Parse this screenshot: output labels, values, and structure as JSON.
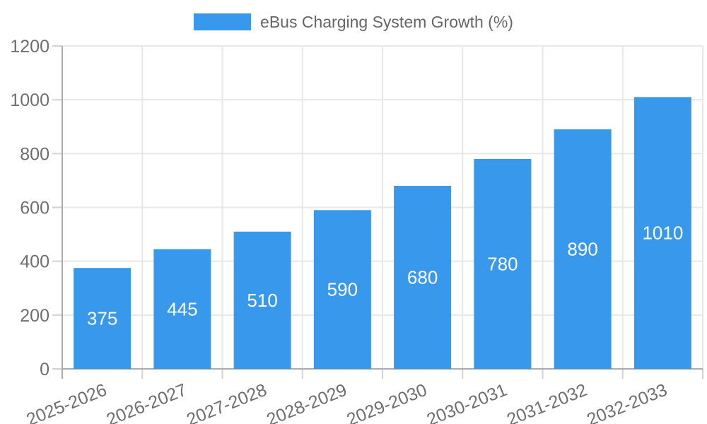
{
  "chart_data": {
    "type": "bar",
    "title": "eBus Charging System Growth (%)",
    "legend": {
      "entries": [
        "eBus Charging System Growth (%)"
      ],
      "position": "top-center"
    },
    "categories": [
      "2025-2026",
      "2026-2027",
      "2027-2028",
      "2028-2029",
      "2029-2030",
      "2030-2031",
      "2031-2032",
      "2032-2033"
    ],
    "values": [
      375,
      445,
      510,
      590,
      680,
      780,
      890,
      1010
    ],
    "value_labels_shown": true,
    "xlabel": "",
    "ylabel": "",
    "ylim": [
      0,
      1200
    ],
    "yticks": [
      0,
      200,
      400,
      600,
      800,
      1000,
      1200
    ],
    "grid": true,
    "x_label_rotation_deg": -22,
    "colors": {
      "bar": "#3898EC",
      "value_label": "#FFFFFF",
      "axis_text": "#6E6E6E",
      "legend_text": "#666666",
      "gridline": "#E7E7E7",
      "tick": "#D2D2D2",
      "axis_line": "#ABABAB",
      "background": "#FFFFFF"
    }
  }
}
